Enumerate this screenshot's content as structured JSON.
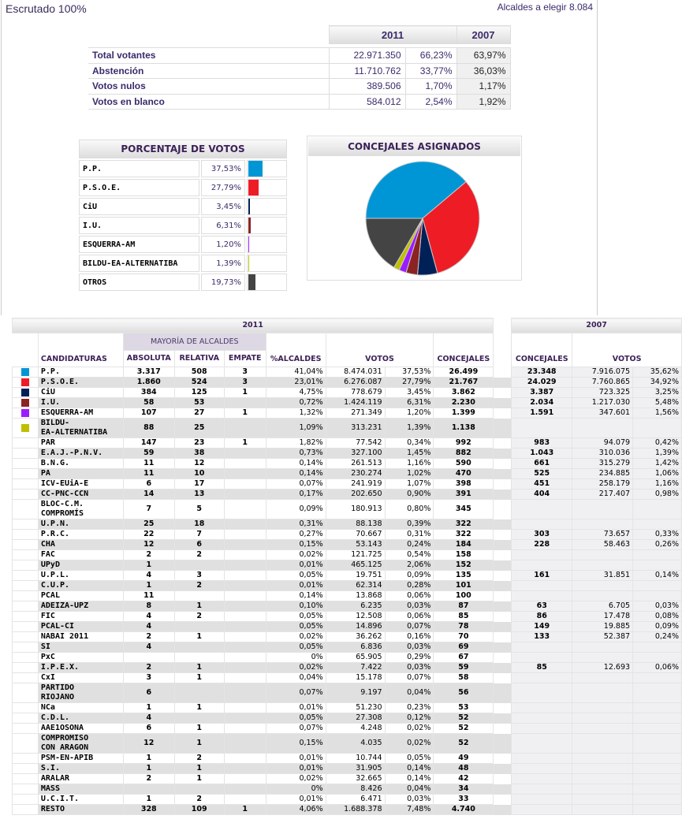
{
  "header": {
    "title": "Escrutado 100%",
    "alcaldes": "Alcaldes a elegir 8.084"
  },
  "summary": {
    "col_2011": "2011",
    "col_2007": "2007",
    "rows": [
      {
        "label": "Total votantes",
        "v2011": "22.971.350",
        "p2011": "66,23%",
        "p2007": "63,97%"
      },
      {
        "label": "Abstención",
        "v2011": "11.710.762",
        "p2011": "33,77%",
        "p2007": "36,03%"
      },
      {
        "label": "Votos nulos",
        "v2011": "389.506",
        "p2011": "1,70%",
        "p2007": "1,17%"
      },
      {
        "label": "Votos en blanco",
        "v2011": "584.012",
        "p2011": "2,54%",
        "p2007": "1,92%"
      }
    ]
  },
  "percent_box": {
    "title": "PORCENTAJE DE VOTOS",
    "rows": [
      {
        "name": "P.P.",
        "pct": "37,53%",
        "value": 37.53,
        "color": "#0096d6"
      },
      {
        "name": "P.S.O.E.",
        "pct": "27,79%",
        "value": 27.79,
        "color": "#ee1c25"
      },
      {
        "name": "CiU",
        "pct": "3,45%",
        "value": 3.45,
        "color": "#002157"
      },
      {
        "name": "I.U.",
        "pct": "6,31%",
        "value": 6.31,
        "color": "#8b2323"
      },
      {
        "name": "ESQUERRA-AM",
        "pct": "1,20%",
        "value": 1.2,
        "color": "#9b1cff"
      },
      {
        "name": "BILDU-EA-ALTERNATIBA",
        "pct": "1,39%",
        "value": 1.39,
        "color": "#bfbf00"
      },
      {
        "name": "OTROS",
        "pct": "19,73%",
        "value": 19.73,
        "color": "#444444"
      }
    ]
  },
  "chart_data": {
    "type": "pie",
    "title": "CONCEJALES ASIGNADOS",
    "categories": [
      "P.P.",
      "P.S.O.E.",
      "CiU",
      "I.U.",
      "ESQUERRA-AM",
      "BILDU-EA-ALTERNATIBA",
      "OTROS"
    ],
    "values": [
      26499,
      21767,
      3862,
      2230,
      1399,
      1138,
      11300
    ],
    "colors": [
      "#0096d6",
      "#ee1c25",
      "#002157",
      "#8b2323",
      "#9b1cff",
      "#bfbf00",
      "#444444"
    ]
  },
  "main": {
    "year_2011": "2011",
    "year_2007": "2007",
    "mayoria": "MAYORÍA DE ALCALDES",
    "headers": {
      "candidaturas": "CANDIDATURAS",
      "absoluta": "ABSOLUTA",
      "relativa": "RELATIVA",
      "empate": "EMPATE",
      "alcaldes": "%ALCALDES",
      "votos": "VOTOS",
      "concejales": "CONCEJALES",
      "concejales_2007": "CONCEJALES",
      "votos_2007": "VOTOS"
    },
    "rows": [
      [
        "#0096d6",
        "P.P.",
        "3.317",
        "508",
        "3",
        "41,04%",
        "8.474.031",
        "37,53%",
        "26.499",
        "23.348",
        "7.916.075",
        "35,62%"
      ],
      [
        "#ee1c25",
        "P.S.O.E.",
        "1.860",
        "524",
        "3",
        "23,01%",
        "6.276.087",
        "27,79%",
        "21.767",
        "24.029",
        "7.760.865",
        "34,92%"
      ],
      [
        "#002157",
        "CiU",
        "384",
        "125",
        "1",
        "4,75%",
        "778.679",
        "3,45%",
        "3.862",
        "3.387",
        "723.325",
        "3,25%"
      ],
      [
        "#8b2323",
        "I.U.",
        "58",
        "53",
        "",
        "0,72%",
        "1.424.119",
        "6,31%",
        "2.230",
        "2.034",
        "1.217.030",
        "5,48%"
      ],
      [
        "#9b1cff",
        "ESQUERRA-AM",
        "107",
        "27",
        "1",
        "1,32%",
        "271.349",
        "1,20%",
        "1.399",
        "1.591",
        "347.601",
        "1,56%"
      ],
      [
        "#bfbf00",
        "BILDU-\nEA-ALTERNATIBA",
        "88",
        "25",
        "",
        "1,09%",
        "313.231",
        "1,39%",
        "1.138",
        "",
        "",
        ""
      ],
      [
        "",
        "PAR",
        "147",
        "23",
        "1",
        "1,82%",
        "77.542",
        "0,34%",
        "992",
        "983",
        "94.079",
        "0,42%"
      ],
      [
        "",
        "E.A.J.-P.N.V.",
        "59",
        "38",
        "",
        "0,73%",
        "327.100",
        "1,45%",
        "882",
        "1.043",
        "310.036",
        "1,39%"
      ],
      [
        "",
        "B.N.G.",
        "11",
        "12",
        "",
        "0,14%",
        "261.513",
        "1,16%",
        "590",
        "661",
        "315.279",
        "1,42%"
      ],
      [
        "",
        "PA",
        "11",
        "10",
        "",
        "0,14%",
        "230.274",
        "1,02%",
        "470",
        "525",
        "234.885",
        "1,06%"
      ],
      [
        "",
        "ICV-EUiA-E",
        "6",
        "17",
        "",
        "0,07%",
        "241.919",
        "1,07%",
        "398",
        "451",
        "258.179",
        "1,16%"
      ],
      [
        "",
        "CC-PNC-CCN",
        "14",
        "13",
        "",
        "0,17%",
        "202.650",
        "0,90%",
        "391",
        "404",
        "217.407",
        "0,98%"
      ],
      [
        "",
        "BLOC-C.M.\nCOMPROMÍS",
        "7",
        "5",
        "",
        "0,09%",
        "180.913",
        "0,80%",
        "345",
        "",
        "",
        ""
      ],
      [
        "",
        "U.P.N.",
        "25",
        "18",
        "",
        "0,31%",
        "88.138",
        "0,39%",
        "322",
        "",
        "",
        ""
      ],
      [
        "",
        "P.R.C.",
        "22",
        "7",
        "",
        "0,27%",
        "70.667",
        "0,31%",
        "322",
        "303",
        "73.657",
        "0,33%"
      ],
      [
        "",
        "CHA",
        "12",
        "6",
        "",
        "0,15%",
        "53.143",
        "0,24%",
        "184",
        "228",
        "58.463",
        "0,26%"
      ],
      [
        "",
        "FAC",
        "2",
        "2",
        "",
        "0,02%",
        "121.725",
        "0,54%",
        "158",
        "",
        "",
        ""
      ],
      [
        "",
        "UPyD",
        "1",
        "",
        "",
        "0,01%",
        "465.125",
        "2,06%",
        "152",
        "",
        "",
        ""
      ],
      [
        "",
        "U.P.L.",
        "4",
        "3",
        "",
        "0,05%",
        "19.751",
        "0,09%",
        "135",
        "161",
        "31.851",
        "0,14%"
      ],
      [
        "",
        "C.U.P.",
        "1",
        "2",
        "",
        "0,01%",
        "62.314",
        "0,28%",
        "101",
        "",
        "",
        ""
      ],
      [
        "",
        "PCAL",
        "11",
        "",
        "",
        "0,14%",
        "13.868",
        "0,06%",
        "100",
        "",
        "",
        ""
      ],
      [
        "",
        "ADEIZA-UPZ",
        "8",
        "1",
        "",
        "0,10%",
        "6.235",
        "0,03%",
        "87",
        "63",
        "6.705",
        "0,03%"
      ],
      [
        "",
        "FIC",
        "4",
        "2",
        "",
        "0,05%",
        "12.508",
        "0,06%",
        "85",
        "86",
        "17.478",
        "0,08%"
      ],
      [
        "",
        "PCAL-CI",
        "4",
        "",
        "",
        "0,05%",
        "14.896",
        "0,07%",
        "78",
        "149",
        "19.885",
        "0,09%"
      ],
      [
        "",
        "NABAI 2011",
        "2",
        "1",
        "",
        "0,02%",
        "36.262",
        "0,16%",
        "70",
        "133",
        "52.387",
        "0,24%"
      ],
      [
        "",
        "SI",
        "4",
        "",
        "",
        "0,05%",
        "6.836",
        "0,03%",
        "69",
        "",
        "",
        ""
      ],
      [
        "",
        "PxC",
        "",
        "",
        "",
        "0%",
        "65.905",
        "0,29%",
        "67",
        "",
        "",
        ""
      ],
      [
        "",
        "I.P.E.X.",
        "2",
        "1",
        "",
        "0,02%",
        "7.422",
        "0,03%",
        "59",
        "85",
        "12.693",
        "0,06%"
      ],
      [
        "",
        "CxI",
        "3",
        "1",
        "",
        "0,04%",
        "15.178",
        "0,07%",
        "58",
        "",
        "",
        ""
      ],
      [
        "",
        "PARTIDO\nRIOJANO",
        "6",
        "",
        "",
        "0,07%",
        "9.197",
        "0,04%",
        "56",
        "",
        "",
        ""
      ],
      [
        "",
        "NCa",
        "1",
        "1",
        "",
        "0,01%",
        "51.230",
        "0,23%",
        "53",
        "",
        "",
        ""
      ],
      [
        "",
        "C.D.L.",
        "4",
        "",
        "",
        "0,05%",
        "27.308",
        "0,12%",
        "52",
        "",
        "",
        ""
      ],
      [
        "",
        "AAE1OSONA",
        "6",
        "1",
        "",
        "0,07%",
        "4.248",
        "0,02%",
        "52",
        "",
        "",
        ""
      ],
      [
        "",
        "COMPROMISO\nCON ARAGON",
        "12",
        "1",
        "",
        "0,15%",
        "4.035",
        "0,02%",
        "52",
        "",
        "",
        ""
      ],
      [
        "",
        "PSM-EN-APIB",
        "1",
        "2",
        "",
        "0,01%",
        "10.744",
        "0,05%",
        "49",
        "",
        "",
        ""
      ],
      [
        "",
        "S.I.",
        "1",
        "1",
        "",
        "0,01%",
        "31.905",
        "0,14%",
        "48",
        "",
        "",
        ""
      ],
      [
        "",
        "ARALAR",
        "2",
        "1",
        "",
        "0,02%",
        "32.665",
        "0,14%",
        "42",
        "",
        "",
        ""
      ],
      [
        "",
        "MASS",
        "",
        "",
        "",
        "0%",
        "8.426",
        "0,04%",
        "34",
        "",
        "",
        ""
      ],
      [
        "",
        "U.C.I.T.",
        "1",
        "2",
        "",
        "0,01%",
        "6.471",
        "0,03%",
        "33",
        "",
        "",
        ""
      ],
      [
        "",
        "RESTO",
        "328",
        "109",
        "1",
        "4,06%",
        "1.688.378",
        "7,48%",
        "4.740",
        "",
        "",
        ""
      ]
    ]
  }
}
